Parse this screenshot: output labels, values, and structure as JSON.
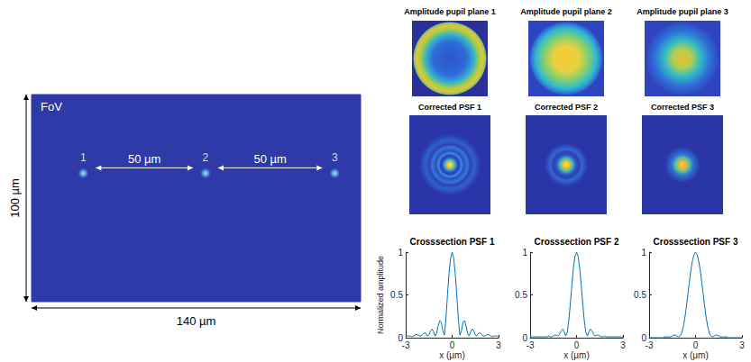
{
  "chart_data": [
    {
      "type": "scatter",
      "title": "FoV",
      "xlabel": "140 µm",
      "ylabel": "100 µm",
      "xlim": [
        0,
        140
      ],
      "ylim": [
        0,
        100
      ],
      "tick_labels": false,
      "color": "#5ab8f0",
      "x": [
        22,
        74,
        129
      ],
      "values": [
        62,
        62,
        62
      ],
      "point_labels": [
        "1",
        "2",
        "3"
      ],
      "annotations": [
        "50 µm",
        "50 µm"
      ]
    },
    {
      "type": "line",
      "title": "Crosssection PSF 1",
      "xlabel": "x (μm)",
      "ylabel": "Normalized amplitude",
      "xlim": [
        -3,
        3
      ],
      "xticks": [
        -3,
        0,
        3
      ],
      "ylim": [
        0,
        1
      ],
      "yticks": [
        0,
        0.5,
        1
      ],
      "color": "#0072bd",
      "x": [
        -3,
        -2.9,
        -2.8,
        -2.7,
        -2.6,
        -2.5,
        -2.4,
        -2.3,
        -2.2,
        -2.1,
        -2,
        -1.9,
        -1.8,
        -1.7,
        -1.6,
        -1.5,
        -1.4,
        -1.3,
        -1.2,
        -1.1,
        -1,
        -0.9,
        -0.8,
        -0.7,
        -0.6,
        -0.5,
        -0.4,
        -0.3,
        -0.2,
        -0.1,
        0,
        0.1,
        0.2,
        0.3,
        0.4,
        0.5,
        0.6,
        0.7,
        0.8,
        0.9,
        1,
        1.1,
        1.2,
        1.3,
        1.4,
        1.5,
        1.6,
        1.7,
        1.8,
        1.9,
        2,
        2.1,
        2.2,
        2.3,
        2.4,
        2.5,
        2.6,
        2.7,
        2.8,
        2.9,
        3
      ],
      "values": [
        0.01,
        0.02,
        0.02,
        0.02,
        0.01,
        0.02,
        0.03,
        0.04,
        0.03,
        0.02,
        0.02,
        0.04,
        0.06,
        0.05,
        0.02,
        0.03,
        0.08,
        0.1,
        0.07,
        0.02,
        0.05,
        0.14,
        0.2,
        0.18,
        0.08,
        0.03,
        0.22,
        0.5,
        0.75,
        0.93,
        1,
        0.93,
        0.75,
        0.5,
        0.22,
        0.03,
        0.08,
        0.18,
        0.2,
        0.14,
        0.05,
        0.02,
        0.07,
        0.1,
        0.08,
        0.03,
        0.02,
        0.05,
        0.06,
        0.04,
        0.02,
        0.02,
        0.03,
        0.04,
        0.03,
        0.02,
        0.01,
        0.02,
        0.02,
        0.02,
        0.01
      ]
    },
    {
      "type": "line",
      "title": "Crosssection PSF 2",
      "xlabel": "x (μm)",
      "xlim": [
        -3,
        3
      ],
      "xticks": [
        -3,
        0,
        3
      ],
      "ylim": [
        0,
        1
      ],
      "yticks": [
        0,
        0.5,
        1
      ],
      "color": "#0072bd",
      "x": [
        -3,
        -2.9,
        -2.8,
        -2.7,
        -2.6,
        -2.5,
        -2.4,
        -2.3,
        -2.2,
        -2.1,
        -2,
        -1.9,
        -1.8,
        -1.7,
        -1.6,
        -1.5,
        -1.4,
        -1.3,
        -1.2,
        -1.1,
        -1,
        -0.9,
        -0.8,
        -0.7,
        -0.6,
        -0.5,
        -0.4,
        -0.3,
        -0.2,
        -0.1,
        0,
        0.1,
        0.2,
        0.3,
        0.4,
        0.5,
        0.6,
        0.7,
        0.8,
        0.9,
        1,
        1.1,
        1.2,
        1.3,
        1.4,
        1.5,
        1.6,
        1.7,
        1.8,
        1.9,
        2,
        2.1,
        2.2,
        2.3,
        2.4,
        2.5,
        2.6,
        2.7,
        2.8,
        2.9,
        3
      ],
      "values": [
        0.01,
        0.01,
        0.01,
        0.01,
        0.01,
        0.01,
        0.01,
        0.01,
        0.01,
        0.01,
        0.01,
        0.01,
        0.02,
        0.01,
        0.01,
        0.02,
        0.03,
        0.03,
        0.02,
        0.04,
        0.08,
        0.1,
        0.07,
        0.02,
        0.06,
        0.2,
        0.4,
        0.62,
        0.82,
        0.95,
        1,
        0.95,
        0.82,
        0.62,
        0.4,
        0.2,
        0.06,
        0.02,
        0.07,
        0.1,
        0.08,
        0.04,
        0.02,
        0.03,
        0.03,
        0.02,
        0.01,
        0.01,
        0.02,
        0.01,
        0.01,
        0.01,
        0.01,
        0.01,
        0.01,
        0.01,
        0.01,
        0.01,
        0.01,
        0.01,
        0.01
      ]
    },
    {
      "type": "line",
      "title": "Crosssection PSF 3",
      "xlabel": "x (μm)",
      "xlim": [
        -3,
        3
      ],
      "xticks": [
        -3,
        0,
        3
      ],
      "ylim": [
        0,
        1
      ],
      "yticks": [
        0,
        0.5,
        1
      ],
      "color": "#0072bd",
      "x": [
        -3,
        -2.9,
        -2.8,
        -2.7,
        -2.6,
        -2.5,
        -2.4,
        -2.3,
        -2.2,
        -2.1,
        -2,
        -1.9,
        -1.8,
        -1.7,
        -1.6,
        -1.5,
        -1.4,
        -1.3,
        -1.2,
        -1.1,
        -1,
        -0.9,
        -0.8,
        -0.7,
        -0.6,
        -0.5,
        -0.4,
        -0.3,
        -0.2,
        -0.1,
        0,
        0.1,
        0.2,
        0.3,
        0.4,
        0.5,
        0.6,
        0.7,
        0.8,
        0.9,
        1,
        1.1,
        1.2,
        1.3,
        1.4,
        1.5,
        1.6,
        1.7,
        1.8,
        1.9,
        2,
        2.1,
        2.2,
        2.3,
        2.4,
        2.5,
        2.6,
        2.7,
        2.8,
        2.9,
        3
      ],
      "values": [
        0,
        0,
        0,
        0,
        0,
        0,
        0,
        0,
        0,
        0,
        0.01,
        0.01,
        0.01,
        0.01,
        0.01,
        0.02,
        0.03,
        0.03,
        0.02,
        0.01,
        0.02,
        0.05,
        0.12,
        0.22,
        0.35,
        0.5,
        0.65,
        0.79,
        0.9,
        0.97,
        1,
        0.97,
        0.9,
        0.79,
        0.65,
        0.5,
        0.35,
        0.22,
        0.12,
        0.05,
        0.02,
        0.01,
        0.02,
        0.03,
        0.03,
        0.02,
        0.01,
        0.01,
        0.01,
        0.01,
        0.01,
        0,
        0,
        0,
        0,
        0,
        0,
        0,
        0,
        0,
        0
      ]
    }
  ],
  "image_panels": [
    {
      "pupil_title": "Amplitude pupil plane 1",
      "psf_title": "Corrected PSF 1"
    },
    {
      "pupil_title": "Amplitude pupil plane 2",
      "psf_title": "Corrected PSF 2"
    },
    {
      "pupil_title": "Amplitude pupil plane 3",
      "psf_title": "Corrected PSF 3"
    }
  ]
}
